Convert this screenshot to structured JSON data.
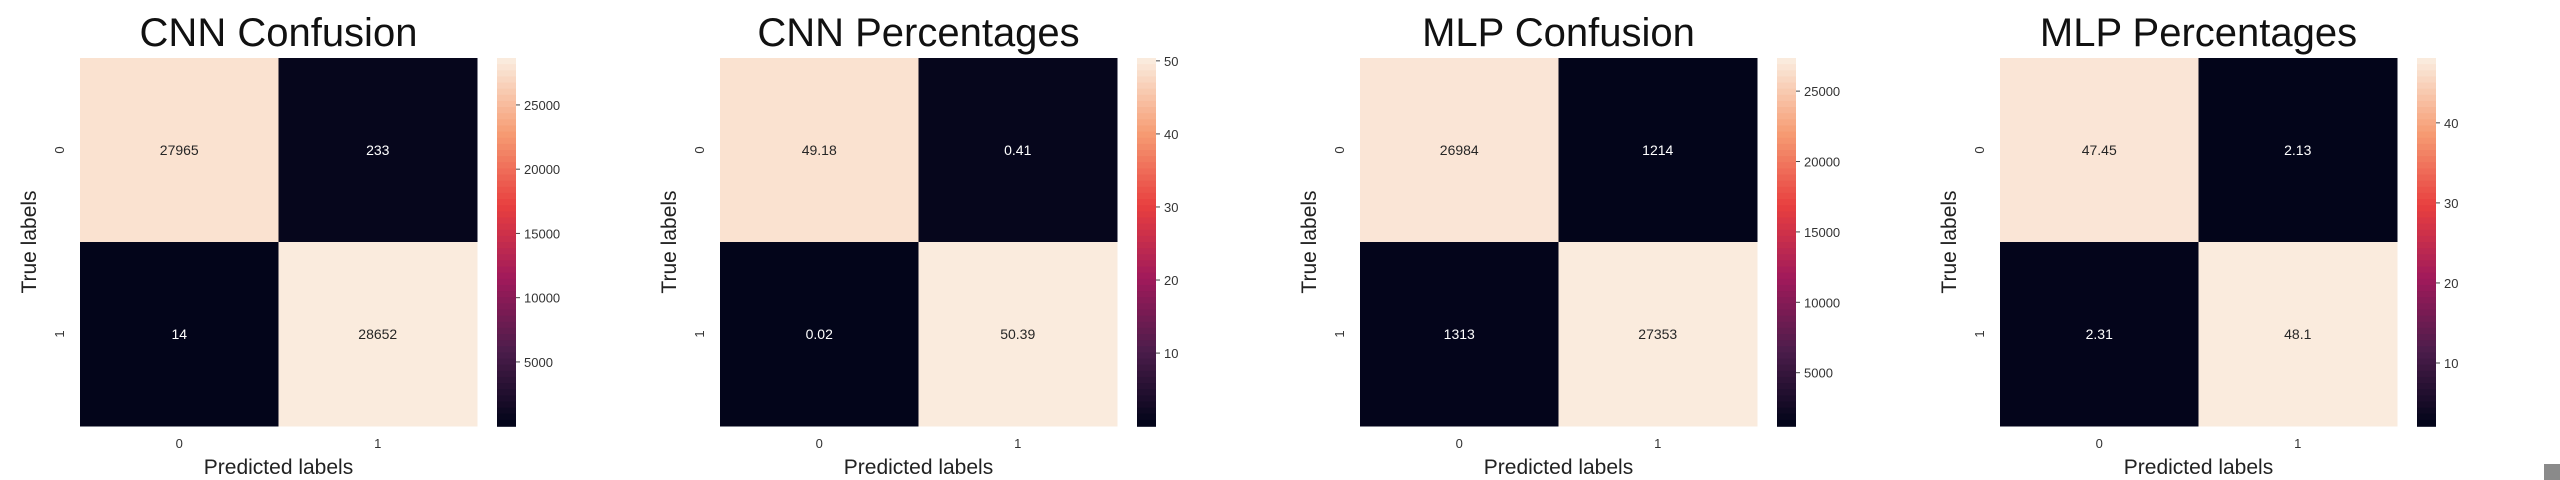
{
  "colormap": {
    "name": "rocket",
    "stops": [
      "#03051a",
      "#4c1d4b",
      "#a11a5b",
      "#e83f3f",
      "#f69c73",
      "#faebdd"
    ]
  },
  "chart_data": [
    {
      "type": "heatmap",
      "title": "CNN Confusion",
      "xlabel": "Predicted labels",
      "ylabel": "True labels",
      "x_ticks": [
        "0",
        "1"
      ],
      "y_ticks": [
        "0",
        "1"
      ],
      "matrix": [
        [
          27965,
          233
        ],
        [
          14,
          28652
        ]
      ],
      "cells": [
        [
          "27965",
          "233"
        ],
        [
          "14",
          "28652"
        ]
      ],
      "vmin": 14,
      "vmax": 28652,
      "colorbar_ticks": [
        5000,
        10000,
        15000,
        20000,
        25000
      ],
      "colorbar_labels": [
        "5000",
        "10000",
        "15000",
        "20000",
        "25000"
      ]
    },
    {
      "type": "heatmap",
      "title": "CNN Percentages",
      "xlabel": "Predicted labels",
      "ylabel": "True labels",
      "x_ticks": [
        "0",
        "1"
      ],
      "y_ticks": [
        "0",
        "1"
      ],
      "matrix": [
        [
          49.18,
          0.41
        ],
        [
          0.02,
          50.39
        ]
      ],
      "cells": [
        [
          "49.18",
          "0.41"
        ],
        [
          "0.02",
          "50.39"
        ]
      ],
      "vmin": 0.02,
      "vmax": 50.39,
      "colorbar_ticks": [
        10,
        20,
        30,
        40,
        50
      ],
      "colorbar_labels": [
        "10",
        "20",
        "30",
        "40",
        "50"
      ]
    },
    {
      "type": "heatmap",
      "title": "MLP Confusion",
      "xlabel": "Predicted labels",
      "ylabel": "True labels",
      "x_ticks": [
        "0",
        "1"
      ],
      "y_ticks": [
        "0",
        "1"
      ],
      "matrix": [
        [
          26984,
          1214
        ],
        [
          1313,
          27353
        ]
      ],
      "cells": [
        [
          "26984",
          "1214"
        ],
        [
          "1313",
          "27353"
        ]
      ],
      "vmin": 1214,
      "vmax": 27353,
      "colorbar_ticks": [
        5000,
        10000,
        15000,
        20000,
        25000
      ],
      "colorbar_labels": [
        "5000",
        "10000",
        "15000",
        "20000",
        "25000"
      ]
    },
    {
      "type": "heatmap",
      "title": "MLP Percentages",
      "xlabel": "Predicted labels",
      "ylabel": "True labels",
      "x_ticks": [
        "0",
        "1"
      ],
      "y_ticks": [
        "0",
        "1"
      ],
      "matrix": [
        [
          47.45,
          2.13
        ],
        [
          2.31,
          48.1
        ]
      ],
      "cells": [
        [
          "47.45",
          "2.13"
        ],
        [
          "2.31",
          "48.1"
        ]
      ],
      "vmin": 2.13,
      "vmax": 48.1,
      "colorbar_ticks": [
        10,
        20,
        30,
        40
      ],
      "colorbar_labels": [
        "10",
        "20",
        "30",
        "40"
      ]
    }
  ]
}
